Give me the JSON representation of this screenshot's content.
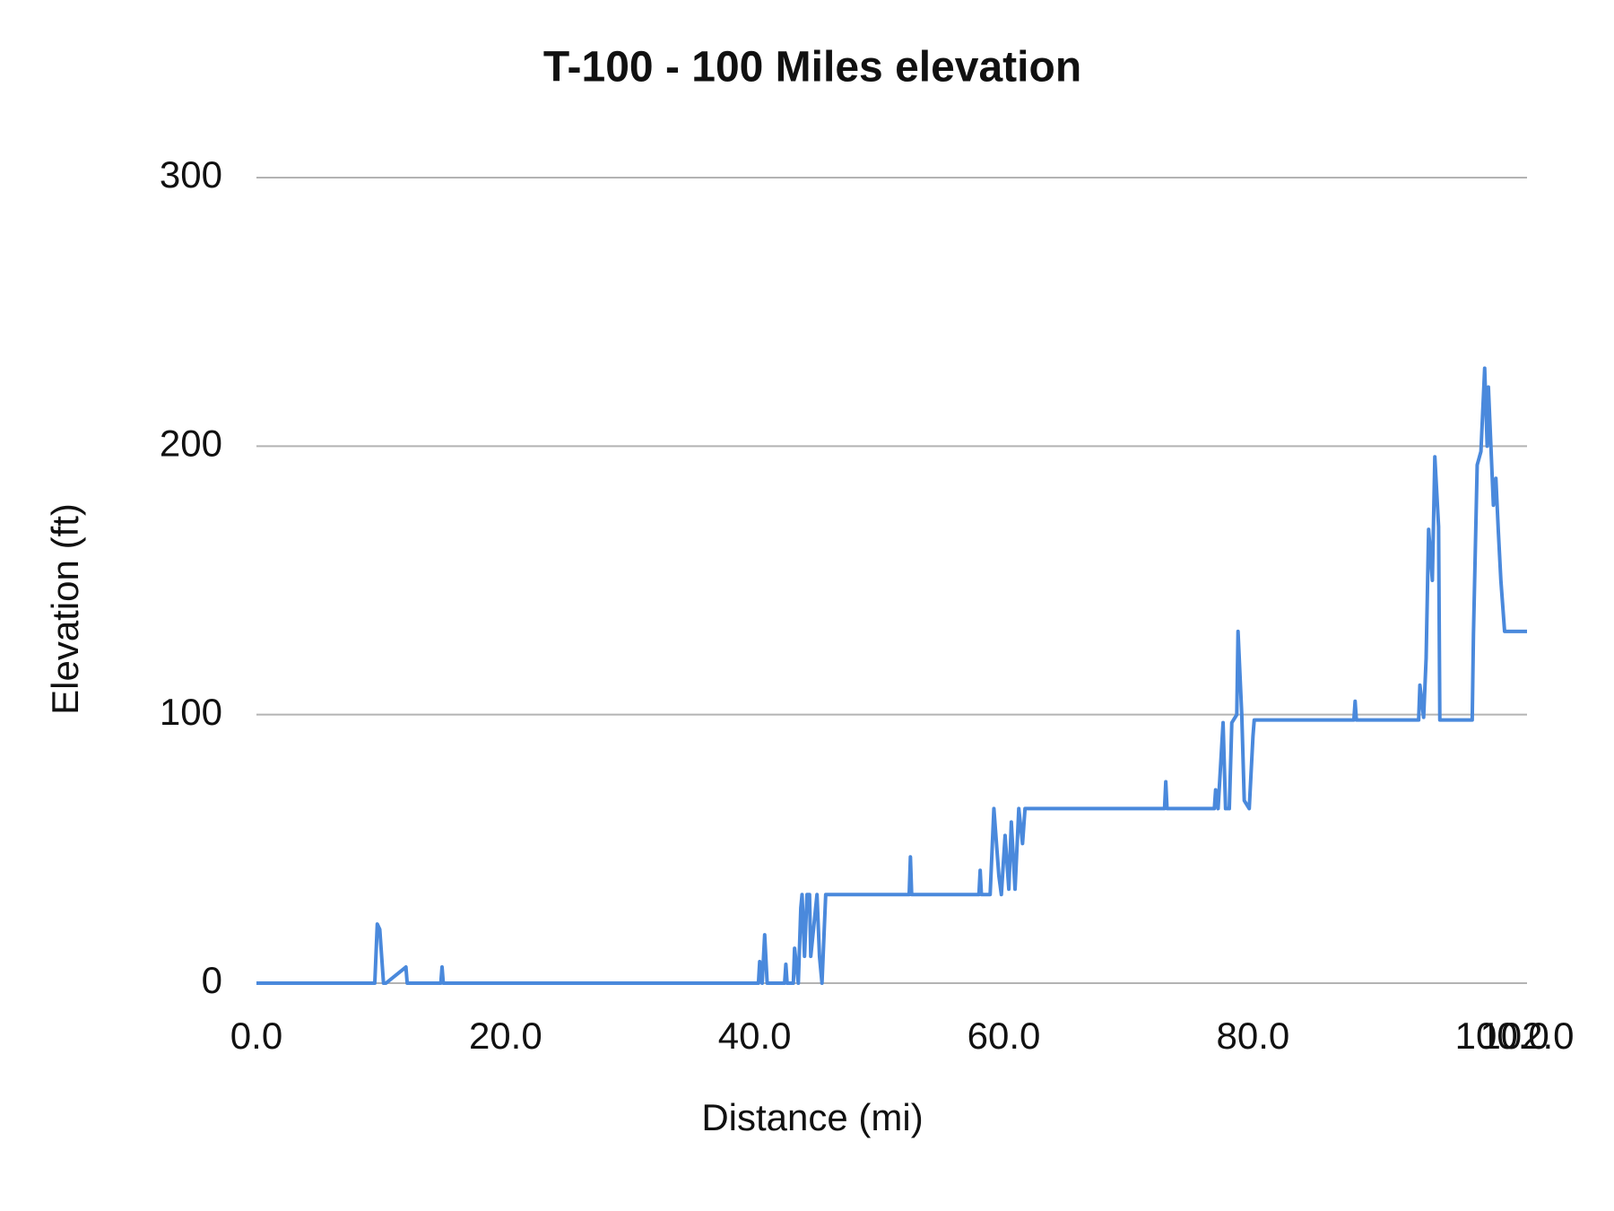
{
  "chart_data": {
    "type": "line",
    "title": "T-100 - 100 Miles elevation",
    "x_label": "Distance (mi)",
    "y_label": "Elevation (ft)",
    "color": "#4a89dc",
    "grid": true,
    "xlim": [
      0,
      102
    ],
    "ylim": [
      0,
      300
    ],
    "xticks": [
      {
        "value": 0,
        "label": "0.0"
      },
      {
        "value": 20,
        "label": "20.0"
      },
      {
        "value": 40,
        "label": "40.0"
      },
      {
        "value": 60,
        "label": "60.0"
      },
      {
        "value": 80,
        "label": "80.0"
      },
      {
        "value": 100,
        "label": "100.0"
      },
      {
        "value": 102,
        "label": "102.0"
      }
    ],
    "yticks": [
      0,
      100,
      200,
      300
    ],
    "x": [
      0,
      9.5,
      9.7,
      9.9,
      10.2,
      10.4,
      12.0,
      12.1,
      12.2,
      14.8,
      14.9,
      15.0,
      40.3,
      40.4,
      40.6,
      40.8,
      41.0,
      42.4,
      42.5,
      42.6,
      43.1,
      43.2,
      43.5,
      43.7,
      43.8,
      44.0,
      44.2,
      44.4,
      44.5,
      45.0,
      45.2,
      45.4,
      45.7,
      52.4,
      52.5,
      52.6,
      58.0,
      58.1,
      58.2,
      58.9,
      59.2,
      59.6,
      59.8,
      60.1,
      60.4,
      60.6,
      60.9,
      61.2,
      61.5,
      61.7,
      72.9,
      73.0,
      73.1,
      76.9,
      77.0,
      77.2,
      77.6,
      77.8,
      78.1,
      78.3,
      78.7,
      78.8,
      79.1,
      79.3,
      79.7,
      80.0,
      80.1,
      88.1,
      88.2,
      88.3,
      93.3,
      93.4,
      93.7,
      93.9,
      94.1,
      94.4,
      94.6,
      94.9,
      95.0,
      97.6,
      97.7,
      98.0,
      98.3,
      98.6,
      98.8,
      98.9,
      99.1,
      99.3,
      99.5,
      99.7,
      99.9,
      100.2,
      102
    ],
    "values": [
      0,
      0,
      22,
      20,
      0,
      0,
      6,
      0,
      0,
      0,
      6,
      0,
      0,
      8,
      0,
      18,
      0,
      0,
      7,
      0,
      0,
      13,
      0,
      28,
      33,
      10,
      33,
      33,
      10,
      33,
      10,
      0,
      33,
      33,
      47,
      33,
      33,
      42,
      33,
      33,
      65,
      40,
      33,
      55,
      35,
      60,
      35,
      65,
      52,
      65,
      65,
      75,
      65,
      65,
      72,
      65,
      97,
      65,
      65,
      97,
      100,
      131,
      100,
      68,
      65,
      92,
      98,
      98,
      105,
      98,
      98,
      111,
      99,
      121,
      169,
      150,
      196,
      170,
      98,
      98,
      130,
      193,
      198,
      229,
      200,
      222,
      200,
      178,
      188,
      168,
      150,
      131,
      131
    ]
  }
}
